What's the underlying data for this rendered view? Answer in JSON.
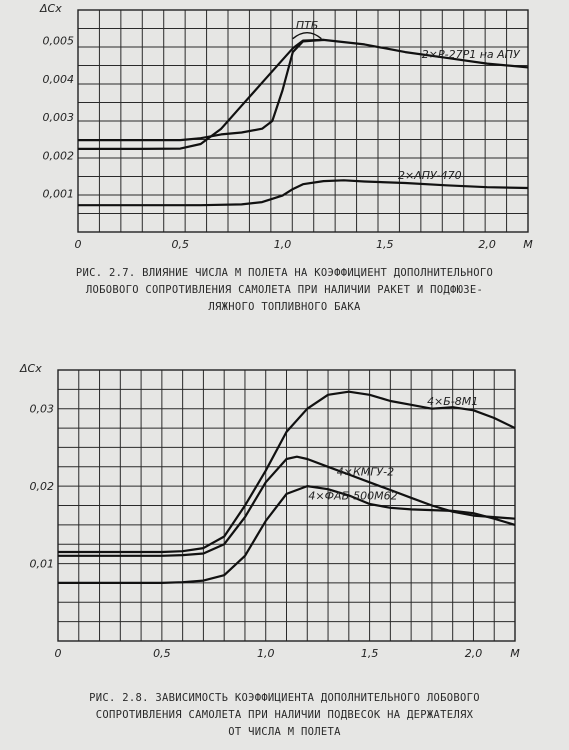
{
  "chart_data": [
    {
      "type": "line",
      "ylabel": "ΔCx",
      "xlabel": "M",
      "xlim": [
        0,
        2.2
      ],
      "ylim": [
        0,
        0.0058
      ],
      "x_ticks": [
        {
          "v": 0,
          "label": "0"
        },
        {
          "v": 0.5,
          "label": "0,5"
        },
        {
          "v": 1.0,
          "label": "1,0"
        },
        {
          "v": 1.5,
          "label": "1,5"
        },
        {
          "v": 2.0,
          "label": "2,0"
        },
        {
          "v": 2.2,
          "label": "M"
        }
      ],
      "y_ticks": [
        {
          "v": 0.001,
          "label": "0,001"
        },
        {
          "v": 0.002,
          "label": "0,002"
        },
        {
          "v": 0.003,
          "label": "0,003"
        },
        {
          "v": 0.004,
          "label": "0,004"
        },
        {
          "v": 0.005,
          "label": "0,005"
        }
      ],
      "series": [
        {
          "name": "2×Р-27Р1 на АПУ",
          "x": [
            0,
            0.3,
            0.5,
            0.6,
            0.7,
            0.8,
            0.9,
            0.95,
            1.0,
            1.05,
            1.1,
            1.2,
            1.4,
            1.6,
            1.8,
            2.0,
            2.2
          ],
          "y": [
            0.0024,
            0.0024,
            0.0024,
            0.00245,
            0.00255,
            0.0026,
            0.0027,
            0.0029,
            0.0037,
            0.0047,
            0.00498,
            0.00502,
            0.0049,
            0.0047,
            0.00455,
            0.0044,
            0.0043
          ]
        },
        {
          "name": "ПТБ",
          "x": [
            0,
            0.3,
            0.5,
            0.6,
            0.7,
            0.8,
            0.9,
            1.0,
            1.05,
            1.1,
            1.2
          ],
          "y": [
            0.00217,
            0.00217,
            0.00218,
            0.0023,
            0.0027,
            0.0033,
            0.0039,
            0.0045,
            0.0048,
            0.005,
            0.00502
          ]
        },
        {
          "name": "2×АПУ-470",
          "x": [
            0,
            0.3,
            0.6,
            0.8,
            0.9,
            1.0,
            1.05,
            1.1,
            1.2,
            1.3,
            1.4,
            1.6,
            1.8,
            2.0,
            2.2
          ],
          "y": [
            0.0007,
            0.0007,
            0.0007,
            0.00072,
            0.00078,
            0.00095,
            0.00112,
            0.00125,
            0.00133,
            0.00135,
            0.00132,
            0.00128,
            0.00122,
            0.00117,
            0.00115
          ]
        }
      ],
      "labels": [
        {
          "text": "ПТБ",
          "x": 1.12,
          "y": 0.0053
        },
        {
          "text": "2×Р-27Р1 на АПУ",
          "x": 1.92,
          "y": 0.00455
        },
        {
          "text": "2×АПУ-470",
          "x": 1.72,
          "y": 0.00138
        }
      ],
      "caption": "РИС. 2.7. ВЛИЯНИЕ ЧИСЛА М ПОЛЕТА НА КОЭФФИЦИЕНТ ДОПОЛНИТЕЛЬНОГО\nЛОБОВОГО СОПРОТИВЛЕНИЯ САМОЛЕТА ПРИ НАЛИЧИИ РАКЕТ И ПОДФЮЗЕ-\nЛЯЖНОГО ТОПЛИВНОГО БАКА"
    },
    {
      "type": "line",
      "ylabel": "ΔCx",
      "xlabel": "M",
      "xlim": [
        0,
        2.2
      ],
      "ylim": [
        0,
        0.035
      ],
      "x_ticks": [
        {
          "v": 0,
          "label": "0"
        },
        {
          "v": 0.5,
          "label": "0,5"
        },
        {
          "v": 1.0,
          "label": "1,0"
        },
        {
          "v": 1.5,
          "label": "1,5"
        },
        {
          "v": 2.0,
          "label": "2,0"
        },
        {
          "v": 2.2,
          "label": "M"
        }
      ],
      "y_ticks": [
        {
          "v": 0.01,
          "label": "0,01"
        },
        {
          "v": 0.02,
          "label": "0,02"
        },
        {
          "v": 0.03,
          "label": "0,03"
        }
      ],
      "series": [
        {
          "name": "4×Б-8М1",
          "x": [
            0,
            0.3,
            0.5,
            0.6,
            0.7,
            0.8,
            0.9,
            1.0,
            1.1,
            1.2,
            1.3,
            1.4,
            1.5,
            1.6,
            1.7,
            1.8,
            1.9,
            2.0,
            2.1,
            2.2
          ],
          "y": [
            0.0115,
            0.0115,
            0.0115,
            0.0116,
            0.012,
            0.0135,
            0.0175,
            0.022,
            0.027,
            0.03,
            0.0318,
            0.0322,
            0.0318,
            0.031,
            0.0305,
            0.03,
            0.0302,
            0.0298,
            0.0288,
            0.0275
          ]
        },
        {
          "name": "4×КМГУ-2",
          "x": [
            0,
            0.3,
            0.5,
            0.6,
            0.7,
            0.8,
            0.9,
            1.0,
            1.1,
            1.15,
            1.2,
            1.3,
            1.4,
            1.5,
            1.6,
            1.7,
            1.8,
            1.9,
            2.0,
            2.1,
            2.2
          ],
          "y": [
            0.011,
            0.011,
            0.011,
            0.0111,
            0.0113,
            0.0125,
            0.016,
            0.0205,
            0.0235,
            0.0238,
            0.0235,
            0.0225,
            0.0215,
            0.0205,
            0.0195,
            0.0185,
            0.0175,
            0.0167,
            0.0162,
            0.016,
            0.0158
          ]
        },
        {
          "name": "4×ФАБ-500М62",
          "x": [
            0,
            0.3,
            0.5,
            0.6,
            0.7,
            0.8,
            0.9,
            1.0,
            1.1,
            1.2,
            1.3,
            1.4,
            1.5,
            1.6,
            1.7,
            1.8,
            1.9,
            2.0,
            2.1,
            2.2
          ],
          "y": [
            0.0075,
            0.0075,
            0.0075,
            0.0076,
            0.0078,
            0.0085,
            0.011,
            0.0155,
            0.019,
            0.02,
            0.0196,
            0.0188,
            0.0177,
            0.0172,
            0.017,
            0.0169,
            0.0168,
            0.0165,
            0.0158,
            0.015
          ]
        }
      ],
      "labels": [
        {
          "text": "4×Б-8М1",
          "x": 1.9,
          "y": 0.0305
        },
        {
          "text": "4×КМГУ-2",
          "x": 1.48,
          "y": 0.0214
        },
        {
          "text": "4×ФАБ-500М62",
          "x": 1.42,
          "y": 0.0183
        }
      ],
      "caption": "РИС. 2.8. ЗАВИСИМОСТЬ КОЭФФИЦИЕНТА ДОПОЛНИТЕЛЬНОГО ЛОБОВОГО\nСОПРОТИВЛЕНИЯ САМОЛЕТА ПРИ НАЛИЧИИ ПОДВЕСОК НА ДЕРЖАТЕЛЯХ\nОТ ЧИСЛА М ПОЛЕТА"
    }
  ]
}
